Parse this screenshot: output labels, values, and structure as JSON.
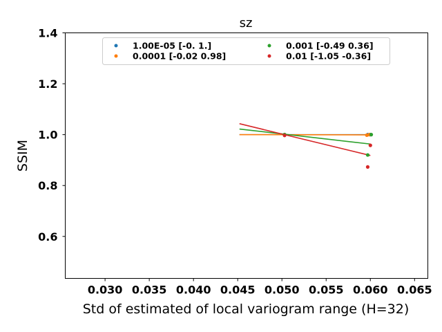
{
  "chart_data": {
    "type": "scatter",
    "title": "sz",
    "xlabel": "Std of estimated of local variogram range (H=32)",
    "ylabel": "SSIM",
    "xlim": [
      0.0255,
      0.0665
    ],
    "ylim": [
      0.435,
      1.4
    ],
    "xticks": [
      0.03,
      0.035,
      0.04,
      0.045,
      0.05,
      0.055,
      0.06,
      0.065
    ],
    "xtick_labels": [
      "0.030",
      "0.035",
      "0.040",
      "0.045",
      "0.050",
      "0.055",
      "0.060",
      "0.065"
    ],
    "yticks": [
      0.6,
      0.8,
      1.0,
      1.2,
      1.4
    ],
    "ytick_labels": [
      "0.6",
      "0.8",
      "1.0",
      "1.2",
      "1.4"
    ],
    "grid": false,
    "legend_position": "top",
    "series": [
      {
        "name": "1.00E-05 [-0.  1.]",
        "color": "#1f77b4",
        "points": [
          [
            0.0503,
            1.0
          ],
          [
            0.0597,
            1.0
          ],
          [
            0.06,
            1.0
          ]
        ],
        "fit_line": [
          [
            0.0452,
            1.0
          ],
          [
            0.06,
            1.0
          ]
        ]
      },
      {
        "name": "0.0001 [-0.02  0.98]",
        "color": "#ff7f0e",
        "points": [
          [
            0.0503,
            1.0
          ],
          [
            0.0596,
            0.998
          ],
          [
            0.0599,
            1.0
          ]
        ],
        "fit_line": [
          [
            0.0452,
            1.0
          ],
          [
            0.06,
            0.999
          ]
        ]
      },
      {
        "name": "0.001 [-0.49  0.36]",
        "color": "#2ca02c",
        "points": [
          [
            0.0503,
            1.0
          ],
          [
            0.0597,
            0.92
          ],
          [
            0.0601,
            1.0
          ]
        ],
        "fit_line": [
          [
            0.0452,
            1.022
          ],
          [
            0.06,
            0.963
          ]
        ]
      },
      {
        "name": "0.01 [-1.05 -0.36]",
        "color": "#d62728",
        "points": [
          [
            0.0503,
            0.997
          ],
          [
            0.0597,
            0.873
          ],
          [
            0.06,
            0.958
          ]
        ],
        "fit_line": [
          [
            0.0452,
            1.043
          ],
          [
            0.06,
            0.918
          ]
        ]
      }
    ]
  }
}
